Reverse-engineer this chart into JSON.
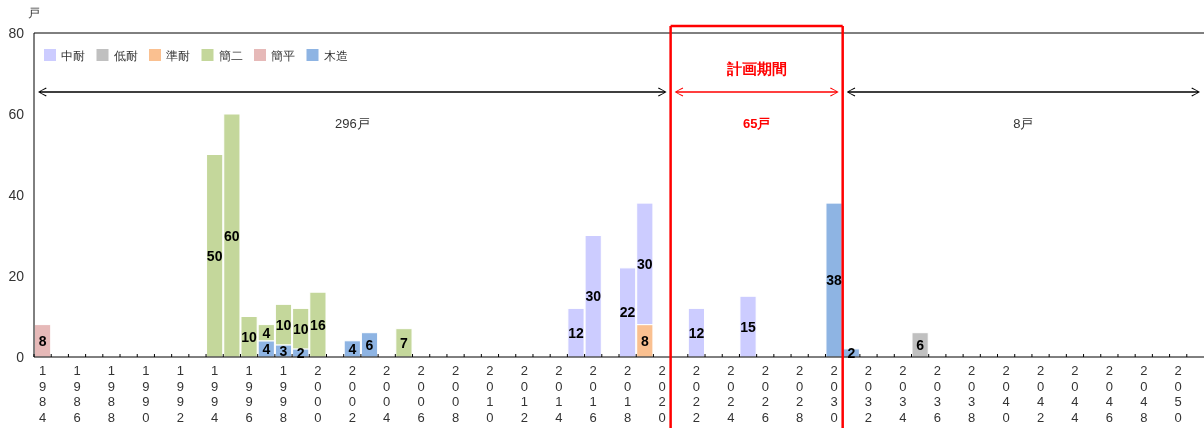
{
  "chart_data": {
    "type": "bar",
    "stacked": true,
    "data_labels": true,
    "legend": "top left",
    "ylabel": "戸",
    "ylim": [
      0,
      80
    ],
    "yticks": [
      0,
      20,
      40,
      60,
      80
    ],
    "xlim": [
      1983.5,
      2051.5
    ],
    "xticks": [
      1984,
      1986,
      1988,
      1990,
      1992,
      1994,
      1996,
      1998,
      2000,
      2002,
      2004,
      2006,
      2008,
      2010,
      2012,
      2014,
      2016,
      2018,
      2020,
      2022,
      2024,
      2026,
      2028,
      2030,
      2032,
      2034,
      2036,
      2038,
      2040,
      2042,
      2044,
      2046,
      2048,
      2050,
      {
        "value": 1983.5,
        "label": null
      },
      {
        "value": 1984.5,
        "label": null
      },
      {
        "value": 1985.5,
        "label": null
      },
      {
        "value": 1986.5,
        "label": null
      },
      {
        "value": 1987.5,
        "label": null
      },
      {
        "value": 1988.5,
        "label": null
      },
      {
        "value": 1989.5,
        "label": null
      },
      {
        "value": 1990.5,
        "label": null
      },
      {
        "value": 1991.5,
        "label": null
      },
      {
        "value": 1992.5,
        "label": null
      },
      {
        "value": 1993.5,
        "label": null
      },
      {
        "value": 1994.5,
        "label": null
      },
      {
        "value": 1995.5,
        "label": null
      },
      {
        "value": 1996.5,
        "label": null
      },
      {
        "value": 1997.5,
        "label": null
      },
      {
        "value": 1998.5,
        "label": null
      },
      {
        "value": 1999.5,
        "label": null
      },
      {
        "value": 2000.5,
        "label": null
      },
      {
        "value": 2001.5,
        "label": null
      },
      {
        "value": 2002.5,
        "label": null
      },
      {
        "value": 2003.5,
        "label": null
      },
      {
        "value": 2004.5,
        "label": null
      },
      {
        "value": 2005.5,
        "label": null
      },
      {
        "value": 2006.5,
        "label": null
      },
      {
        "value": 2007.5,
        "label": null
      },
      {
        "value": 2008.5,
        "label": null
      },
      {
        "value": 2009.5,
        "label": null
      },
      {
        "value": 2010.5,
        "label": null
      },
      {
        "value": 2011.5,
        "label": null
      },
      {
        "value": 2012.5,
        "label": null
      },
      {
        "value": 2013.5,
        "label": null
      },
      {
        "value": 2014.5,
        "label": null
      },
      {
        "value": 2015.5,
        "label": null
      },
      {
        "value": 2016.5,
        "label": null
      },
      {
        "value": 2017.5,
        "label": null
      },
      {
        "value": 2018.5,
        "label": null
      },
      {
        "value": 2019.5,
        "label": null
      },
      {
        "value": 2020.5,
        "label": null
      },
      {
        "value": 2021.5,
        "label": null
      },
      {
        "value": 2022.5,
        "label": null
      },
      {
        "value": 2023.5,
        "label": null
      },
      {
        "value": 2024.5,
        "label": null
      },
      {
        "value": 2025.5,
        "label": null
      },
      {
        "value": 2026.5,
        "label": null
      },
      {
        "value": 2027.5,
        "label": null
      },
      {
        "value": 2028.5,
        "label": null
      },
      {
        "value": 2029.5,
        "label": null
      },
      {
        "value": 2030.5,
        "label": null
      },
      {
        "value": 2031.5,
        "label": null
      },
      {
        "value": 2032.5,
        "label": null
      },
      {
        "value": 2033.5,
        "label": null
      },
      {
        "value": 2034.5,
        "label": null
      },
      {
        "value": 2035.5,
        "label": null
      },
      {
        "value": 2036.5,
        "label": null
      },
      {
        "value": 2037.5,
        "label": null
      },
      {
        "value": 2038.5,
        "label": null
      },
      {
        "value": 2039.5,
        "label": null
      },
      {
        "value": 2040.5,
        "label": null
      },
      {
        "value": 2041.5,
        "label": null
      },
      {
        "value": 2042.5,
        "label": null
      },
      {
        "value": 2043.5,
        "label": null
      },
      {
        "value": 2044.5,
        "label": null
      },
      {
        "value": 2045.5,
        "label": null
      },
      {
        "value": 2046.5,
        "label": null
      },
      {
        "value": 2047.5,
        "label": null
      },
      {
        "value": 2048.5,
        "label": null
      },
      {
        "value": 2049.5,
        "label": null
      },
      {
        "value": 2050.5,
        "label": null
      }
    ],
    "x": [
      1984,
      1994,
      1995,
      1996,
      1997,
      1998,
      1999,
      2000,
      2002,
      2003,
      2005,
      2015,
      2016,
      2018,
      2019,
      2022,
      2025,
      2030,
      2031,
      2035
    ],
    "series": [
      {
        "name": "木造",
        "color": "#8eb4e3",
        "values": [
          null,
          null,
          null,
          null,
          4,
          3,
          2,
          null,
          4,
          6,
          null,
          null,
          null,
          null,
          null,
          null,
          null,
          38,
          2,
          null
        ]
      },
      {
        "name": "簡平",
        "color": "#e6b9b8",
        "values": [
          8,
          null,
          null,
          null,
          null,
          null,
          null,
          null,
          null,
          null,
          null,
          null,
          null,
          null,
          null,
          null,
          null,
          null,
          null,
          null
        ]
      },
      {
        "name": "簡二",
        "color": "#c4d79b",
        "values": [
          null,
          50,
          60,
          10,
          4,
          10,
          10,
          16,
          null,
          null,
          7,
          null,
          null,
          null,
          null,
          null,
          null,
          null,
          null,
          null
        ]
      },
      {
        "name": "準耐",
        "color": "#fac090",
        "values": [
          null,
          null,
          null,
          null,
          null,
          null,
          null,
          null,
          null,
          null,
          null,
          null,
          null,
          null,
          8,
          null,
          null,
          null,
          null,
          null
        ]
      },
      {
        "name": "低耐",
        "color": "#c0c0c0",
        "values": [
          null,
          null,
          null,
          null,
          null,
          null,
          null,
          null,
          null,
          null,
          null,
          null,
          null,
          null,
          null,
          null,
          null,
          null,
          null,
          6
        ]
      },
      {
        "name": "中耐",
        "color": "#ccccff",
        "values": [
          null,
          null,
          null,
          null,
          null,
          null,
          null,
          null,
          null,
          null,
          null,
          12,
          30,
          22,
          30,
          12,
          15,
          null,
          null,
          null
        ]
      }
    ],
    "ref_lines": [
      {
        "axis": "x",
        "value": 2020.5,
        "color": "#ff0000"
      },
      {
        "axis": "x",
        "value": 2030.5,
        "color": "#ff0000"
      }
    ],
    "annotations": [
      "296戸",
      "計画期間",
      "65戸",
      "8戸"
    ]
  }
}
